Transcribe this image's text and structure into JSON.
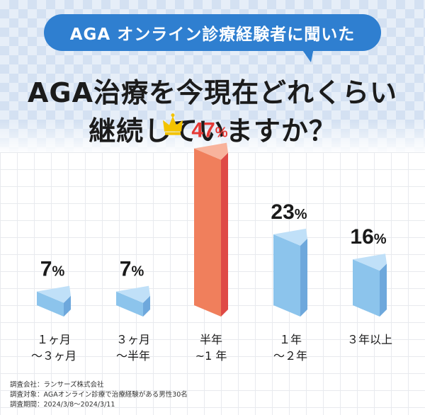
{
  "header": {
    "bubble_text": "AGA オンライン診療経験者に聞いた",
    "title_line1": "AGA治療を今現在どれくらい",
    "title_line2": "継続していますか？"
  },
  "chart_data": {
    "type": "bar",
    "categories": [
      [
        "１ヶ月",
        "～３ヶ月"
      ],
      [
        "３ヶ月",
        "～半年"
      ],
      [
        "半年",
        "~1 年"
      ],
      [
        "１年",
        "～２年"
      ],
      [
        "３年以上"
      ]
    ],
    "values": [
      7,
      7,
      47,
      23,
      16
    ],
    "value_labels": [
      "7",
      "7",
      "47",
      "23",
      "16"
    ],
    "unit": "%",
    "highlight_index": 2,
    "highlight_icon": "crown-icon",
    "colors": {
      "normal_front": "#8cc4ec",
      "normal_side": "#6ea8dc",
      "normal_top": "#c0e0f8",
      "highlight_front": "#f07f5c",
      "highlight_side": "#df4a46",
      "highlight_top": "#f8b39c",
      "highlight_label": "#e53935",
      "label": "#1a1a1a",
      "crown": "#f3c300"
    }
  },
  "footnotes": [
    "調査会社：ランサーズ株式会社",
    "調査対象：AGAオンライン診療で治療経験がある男性30名",
    "調査期間：2024/3/8～2024/3/11"
  ]
}
